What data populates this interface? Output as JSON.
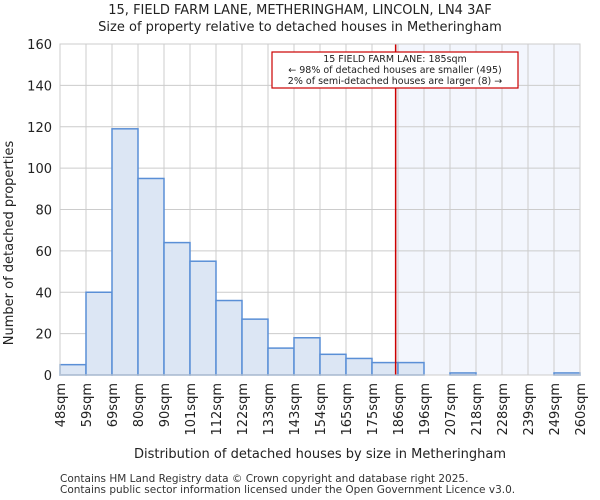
{
  "chart_data": {
    "type": "bar",
    "title": "15, FIELD FARM LANE, METHERINGHAM, LINCOLN, LN4 3AF",
    "subtitle": "Size of property relative to detached houses in Metheringham",
    "xlabel": "Distribution of detached houses by size in Metheringham",
    "ylabel": "Number of detached properties",
    "ylim": [
      0,
      160
    ],
    "yticks": [
      0,
      20,
      40,
      60,
      80,
      100,
      120,
      140,
      160
    ],
    "bin_edges": [
      48,
      59,
      69,
      80,
      90,
      101,
      112,
      122,
      133,
      143,
      154,
      165,
      175,
      186,
      196,
      207,
      218,
      228,
      239,
      249,
      260
    ],
    "tick_labels": [
      "48sqm",
      "59sqm",
      "69sqm",
      "80sqm",
      "90sqm",
      "101sqm",
      "112sqm",
      "122sqm",
      "133sqm",
      "143sqm",
      "154sqm",
      "165sqm",
      "175sqm",
      "186sqm",
      "196sqm",
      "207sqm",
      "218sqm",
      "228sqm",
      "239sqm",
      "249sqm",
      "260sqm"
    ],
    "values": [
      5,
      40,
      119,
      95,
      64,
      55,
      36,
      27,
      13,
      18,
      10,
      8,
      6,
      6,
      0,
      1,
      0,
      0,
      0,
      1
    ],
    "marker_value": 185,
    "annotation": [
      "15 FIELD FARM LANE: 185sqm",
      "← 98% of detached houses are smaller (495)",
      "2% of semi-detached houses are larger (8) →"
    ],
    "grid": true,
    "colors": {
      "bar": "#dce6f4",
      "bar_edge": "#5a8fd6",
      "marker": "#cc0000",
      "shade": "#f3f6fd"
    }
  },
  "footer": [
    "Contains HM Land Registry data © Crown copyright and database right 2025.",
    "Contains public sector information licensed under the Open Government Licence v3.0."
  ]
}
